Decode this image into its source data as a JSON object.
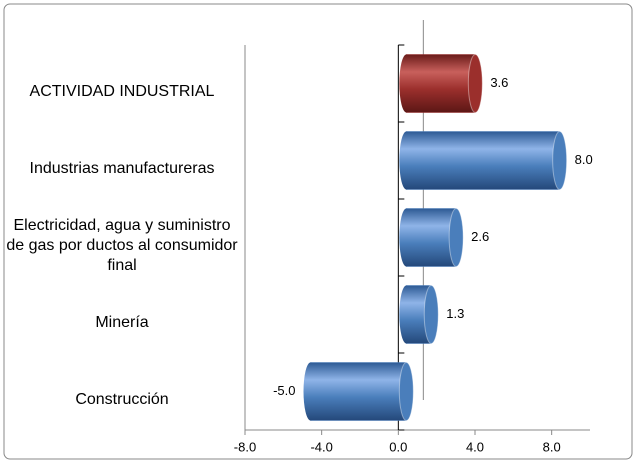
{
  "chart_data": {
    "type": "bar",
    "orientation": "horizontal",
    "categories": [
      "ACTIVIDAD INDUSTRIAL",
      "Industrias manufactureras",
      "Electricidad, agua y suministro de gas por ductos al consumidor final",
      "Minería",
      "Construcción"
    ],
    "values": [
      3.6,
      8.0,
      2.6,
      1.3,
      -5.0
    ],
    "value_labels": [
      "3.6",
      "8.0",
      "2.6",
      "1.3",
      "-5.0"
    ],
    "colors": [
      "#9b2f2c",
      "#4a7ebb",
      "#4a7ebb",
      "#4a7ebb",
      "#4a7ebb"
    ],
    "xlim": [
      -8,
      10
    ],
    "xticks": [
      {
        "value": -8,
        "label": "-8.0"
      },
      {
        "value": -4,
        "label": "-4.0"
      },
      {
        "value": 0,
        "label": "0.0"
      },
      {
        "value": 4,
        "label": "4.0"
      },
      {
        "value": 8,
        "label": "8.0"
      }
    ]
  }
}
